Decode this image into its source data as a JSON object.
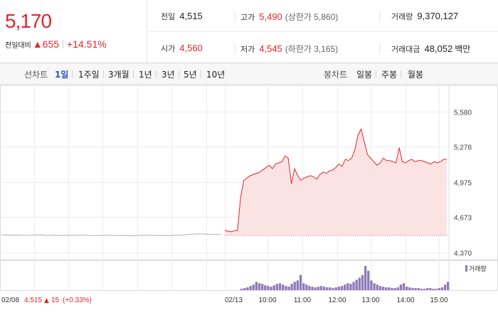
{
  "price": {
    "current": "5,170",
    "change_label": "전일대비",
    "change_arrow": "▲",
    "change_value": "655",
    "change_percent": "+14.51%"
  },
  "stats": {
    "prev_label": "전일",
    "prev_value": "4,515",
    "high_label": "고가",
    "high_value": "5,490",
    "upper_limit_label": "(상한가 5,860)",
    "volume_label": "거래량",
    "volume_value": "9,370,127",
    "open_label": "시가",
    "open_value": "4,560",
    "low_label": "저가",
    "low_value": "4,545",
    "lower_limit_label": "(하한가 3,165)",
    "amount_label": "거래대금",
    "amount_value": "48,052",
    "amount_unit": "백만"
  },
  "line_tabs": {
    "label": "선차트",
    "items": [
      "1일",
      "1주일",
      "3개월",
      "1년",
      "3년",
      "5년",
      "10년"
    ],
    "active": "1일"
  },
  "candle_tabs": {
    "label": "봉차트",
    "items": [
      "일봉",
      "주봉",
      "월봉"
    ]
  },
  "colors": {
    "up": "#e4252c",
    "tab_active": "#2756c5",
    "volume": "#8e7bb8",
    "prev_line": "#b0b0b0",
    "area_fill": "#fbe3e3"
  },
  "chart_data": {
    "type": "line",
    "y_ticks": [
      "5,580",
      "5,278",
      "4,975",
      "4,673",
      "4,370"
    ],
    "ylim": [
      4370,
      5580
    ],
    "volume_legend": "거래량",
    "x_ticks": [
      "02/13",
      "10:00",
      "11:00",
      "12:00",
      "13:00",
      "14:00",
      "15:00"
    ],
    "prev_day": {
      "date_label": "02/08",
      "close": "4,515",
      "arrow": "▲",
      "change": "15",
      "change_percent": "(+0.33%)",
      "prices": [
        4521,
        4519,
        4520,
        4517,
        4518,
        4522,
        4516,
        4518,
        4515,
        4519,
        4517,
        4520,
        4514,
        4516,
        4518,
        4515,
        4517,
        4513,
        4516,
        4519,
        4515,
        4517,
        4514,
        4518,
        4520,
        4525,
        4530,
        4528,
        4524,
        4526
      ]
    },
    "today": {
      "prices": [
        4560,
        4552,
        4548,
        4556,
        4560,
        4850,
        4990,
        5010,
        5030,
        5040,
        5050,
        5060,
        5080,
        5100,
        5120,
        5090,
        5130,
        5140,
        5150,
        5200,
        5180,
        4960,
        5090,
        5030,
        4990,
        5010,
        5020,
        5030,
        5020,
        5000,
        5040,
        5060,
        5050,
        5070,
        5080,
        5100,
        5130,
        5110,
        5170,
        5160,
        5180,
        5250,
        5380,
        5430,
        5320,
        5210,
        5180,
        5150,
        5120,
        5140,
        5180,
        5160,
        5160,
        5150,
        5140,
        5270,
        5150,
        5140,
        5160,
        5170,
        5150,
        5160,
        5160,
        5150,
        5140,
        5130,
        5150,
        5140,
        5150,
        5170,
        5170
      ]
    },
    "volume": [
      2,
      3,
      4,
      6,
      8,
      12,
      10,
      9,
      7,
      6,
      5,
      7,
      9,
      10,
      8,
      6,
      5,
      9,
      12,
      14,
      22,
      10,
      8,
      6,
      5,
      4,
      5,
      6,
      5,
      4,
      4,
      3,
      4,
      5,
      6,
      8,
      10,
      9,
      12,
      15,
      18,
      22,
      35,
      28,
      14,
      10,
      8,
      6,
      5,
      4,
      4,
      3,
      3,
      4,
      8,
      10,
      5,
      4,
      3,
      3,
      3,
      2,
      2,
      3,
      3,
      2,
      2,
      3,
      4,
      8,
      12
    ]
  }
}
